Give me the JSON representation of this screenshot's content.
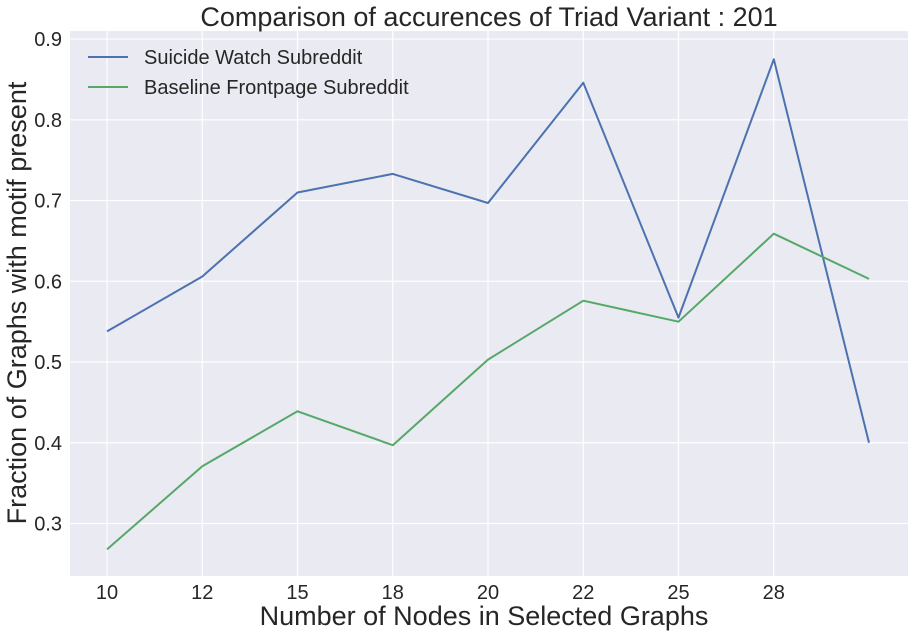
{
  "chart_data": {
    "type": "line",
    "title": "Comparison of accurences of Triad Variant  : 201",
    "xlabel": "Number of Nodes in Selected Graphs",
    "ylabel": "Fraction of Graphs with motif present",
    "categories": [
      "10",
      "12",
      "15",
      "18",
      "20",
      "22",
      "25",
      "28",
      ""
    ],
    "x_tick_labels": [
      "10",
      "12",
      "15",
      "18",
      "20",
      "22",
      "25",
      "28"
    ],
    "y_ticks": [
      0.3,
      0.4,
      0.5,
      0.6,
      0.7,
      0.8,
      0.9
    ],
    "y_tick_labels": [
      "0.3",
      "0.4",
      "0.5",
      "0.6",
      "0.7",
      "0.8",
      "0.9"
    ],
    "ylim": [
      0.235,
      0.91
    ],
    "grid": true,
    "legend_position": "top-left",
    "background_color": "#EAEAF2",
    "series": [
      {
        "name": "Suicide Watch Subreddit",
        "color": "#4C72B0",
        "values": [
          0.538,
          0.606,
          0.71,
          0.733,
          0.697,
          0.846,
          0.555,
          0.875,
          0.4
        ]
      },
      {
        "name": "Baseline Frontpage Subreddit",
        "color": "#55A868",
        "values": [
          0.268,
          0.371,
          0.439,
          0.397,
          0.503,
          0.576,
          0.55,
          0.659,
          0.603
        ]
      }
    ]
  }
}
